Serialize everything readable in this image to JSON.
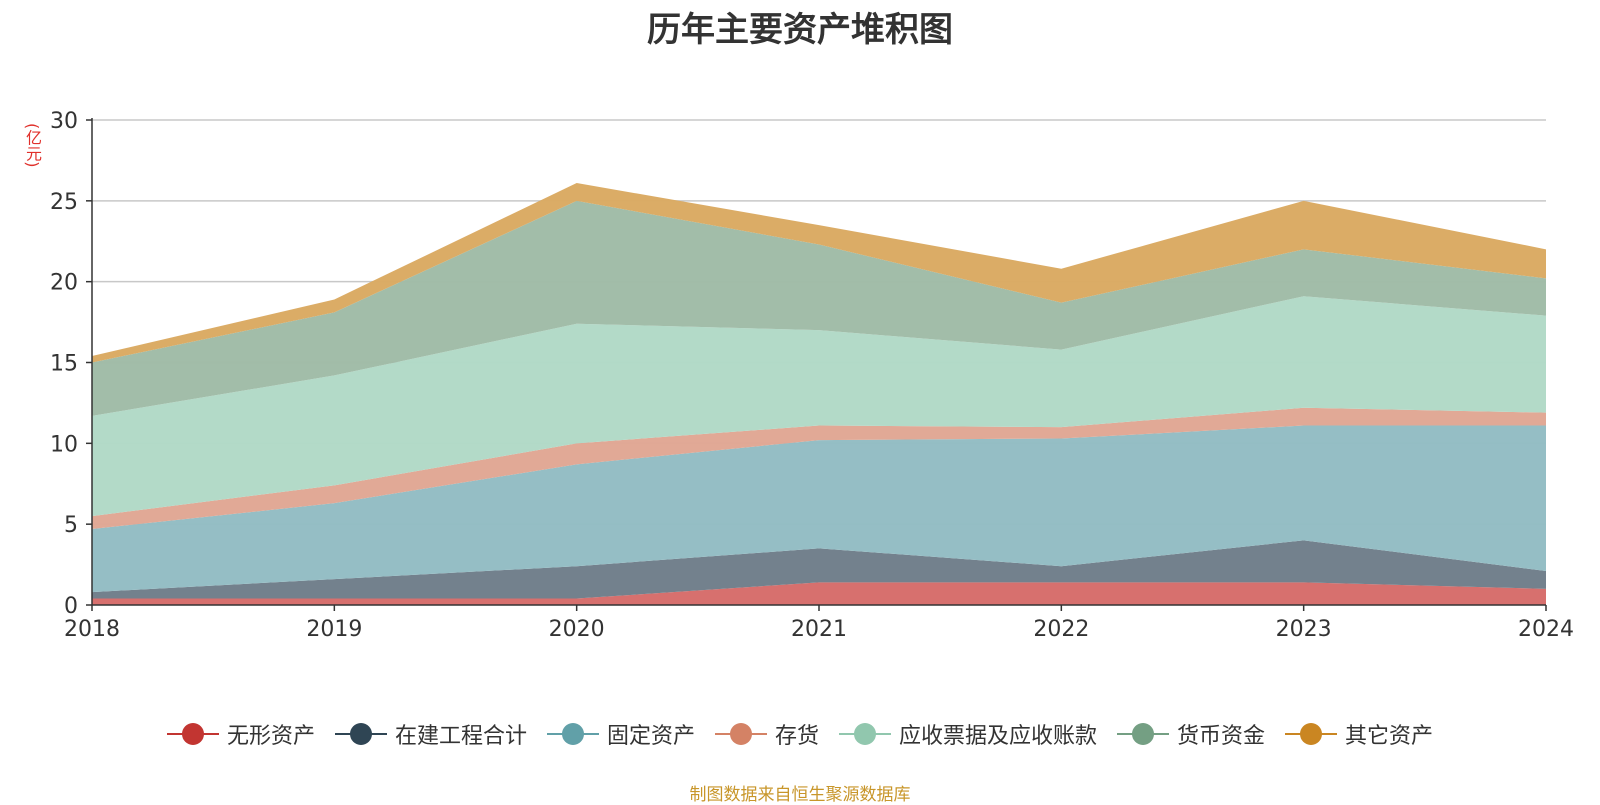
{
  "chart_data": {
    "type": "area",
    "title": "历年主要资产堆积图",
    "unit_label": "(亿元)",
    "categories": [
      "2018",
      "2019",
      "2020",
      "2021",
      "2022",
      "2023",
      "2024"
    ],
    "ylim": [
      0,
      30
    ],
    "yticks": [
      0,
      5,
      10,
      15,
      20,
      25,
      30
    ],
    "grid": true,
    "stacked": true,
    "legend_position": "bottom",
    "series": [
      {
        "name": "无形资产",
        "color": "#c23531",
        "area_color": "#d66b69",
        "values": [
          0.4,
          0.4,
          0.4,
          1.4,
          1.4,
          1.4,
          1.0
        ]
      },
      {
        "name": "在建工程合计",
        "color": "#2f4554",
        "area_color": "#6e7d89",
        "values": [
          0.4,
          1.2,
          2.0,
          2.1,
          1.0,
          2.6,
          1.1
        ]
      },
      {
        "name": "固定资产",
        "color": "#61a0a8",
        "area_color": "#92bcc3",
        "values": [
          3.9,
          4.7,
          6.3,
          6.7,
          7.9,
          7.1,
          9.0
        ]
      },
      {
        "name": "存货",
        "color": "#d48265",
        "area_color": "#e0a693",
        "values": [
          0.8,
          1.1,
          1.3,
          0.9,
          0.7,
          1.1,
          0.8
        ]
      },
      {
        "name": "应收票据及应收账款",
        "color": "#91c7ae",
        "area_color": "#b1d9c6",
        "values": [
          6.2,
          6.8,
          7.4,
          5.9,
          4.8,
          6.9,
          6.0
        ]
      },
      {
        "name": "货币资金",
        "color": "#749f83",
        "area_color": "#9fbba6",
        "values": [
          3.3,
          3.9,
          7.6,
          5.3,
          2.9,
          2.9,
          2.3
        ]
      },
      {
        "name": "其它资产",
        "color": "#ca8622",
        "area_color": "#daa961",
        "values": [
          0.4,
          0.8,
          1.1,
          1.2,
          2.1,
          3.0,
          1.8
        ]
      }
    ]
  },
  "source_note": "制图数据来自恒生聚源数据库"
}
